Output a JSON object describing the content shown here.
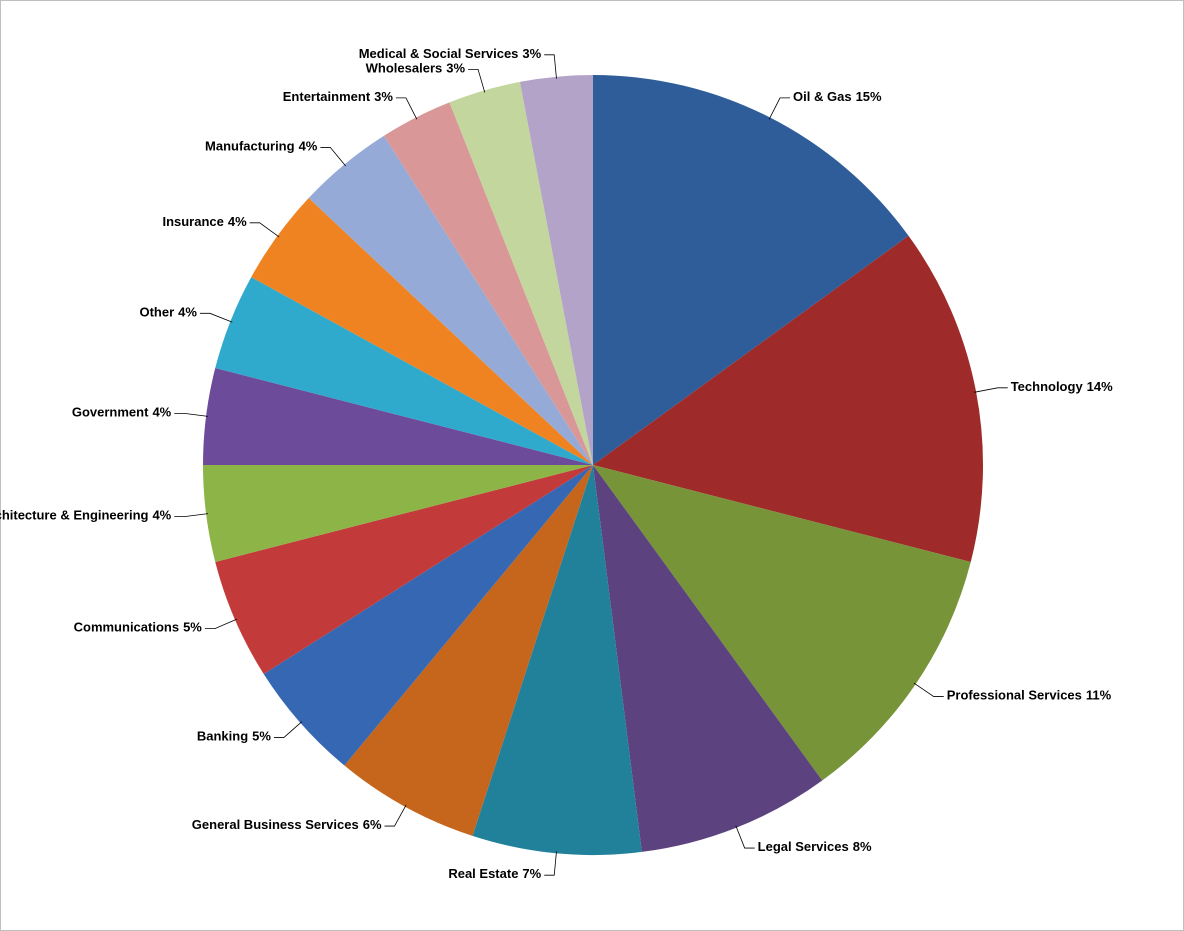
{
  "chart_data": {
    "type": "pie",
    "categories": [
      "Oil & Gas",
      "Technology",
      "Professional Services",
      "Legal Services",
      "Real Estate",
      "General Business Services",
      "Banking",
      "Communications",
      "Architecture & Engineering",
      "Government",
      "Other",
      "Insurance",
      "Manufacturing",
      "Entertainment",
      "Wholesalers",
      "Medical & Social Services"
    ],
    "values": [
      15,
      14,
      11,
      8,
      7,
      6,
      5,
      5,
      4,
      4,
      4,
      4,
      4,
      3,
      3,
      3
    ],
    "value_labels": [
      "15%",
      "14%",
      "11%",
      "8%",
      "7%",
      "6%",
      "5%",
      "5%",
      "4%",
      "4%",
      "4%",
      "4%",
      "4%",
      "3%",
      "3%",
      "3%"
    ],
    "colors": [
      "#2e5d9a",
      "#9e2b2a",
      "#779439",
      "#5c427e",
      "#22819a",
      "#c6651c",
      "#3567b2",
      "#c23a3a",
      "#8cb447",
      "#6c4b9b",
      "#2fa9cc",
      "#f08321",
      "#95aad6",
      "#d99897",
      "#c2d69d",
      "#b3a3c9"
    ]
  }
}
